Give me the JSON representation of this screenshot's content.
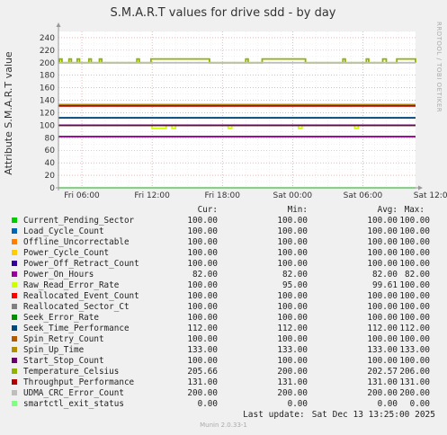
{
  "chart_data": {
    "type": "line",
    "title": "S.M.A.R.T values for drive sdd - by day",
    "ylabel": "Attribute S.M.A.R.T value",
    "side_label": "RRDTOOL / TOBI OETIKER",
    "ylim": [
      0,
      250
    ],
    "yticks": [
      0,
      20,
      40,
      60,
      80,
      100,
      120,
      140,
      160,
      180,
      200,
      220,
      240
    ],
    "xlim": [
      0,
      30.5
    ],
    "xticks": [
      {
        "label": "Fri 06:00",
        "x": 2
      },
      {
        "label": "Fri 12:00",
        "x": 8
      },
      {
        "label": "Fri 18:00",
        "x": 14
      },
      {
        "label": "Sat 00:00",
        "x": 20
      },
      {
        "label": "Sat 06:00",
        "x": 26
      },
      {
        "label": "Sat 12:00",
        "x": 32
      }
    ],
    "grid": true,
    "series": [
      {
        "name": "Current_Pending_Sector",
        "color": "#00cc00",
        "cur": "100.00",
        "min": "100.00",
        "avg": "100.00",
        "max": "100.00",
        "y": 100
      },
      {
        "name": "Load_Cycle_Count",
        "color": "#0066b3",
        "cur": "100.00",
        "min": "100.00",
        "avg": "100.00",
        "max": "100.00",
        "y": 100
      },
      {
        "name": "Offline_Uncorrectable",
        "color": "#ff8000",
        "cur": "100.00",
        "min": "100.00",
        "avg": "100.00",
        "max": "100.00",
        "y": 100
      },
      {
        "name": "Power_Cycle_Count",
        "color": "#ffcc00",
        "cur": "100.00",
        "min": "100.00",
        "avg": "100.00",
        "max": "100.00",
        "y": 100
      },
      {
        "name": "Power_Off_Retract_Count",
        "color": "#330099",
        "cur": "100.00",
        "min": "100.00",
        "avg": "100.00",
        "max": "100.00",
        "y": 100
      },
      {
        "name": "Power_On_Hours",
        "color": "#990099",
        "cur": "82.00",
        "min": "82.00",
        "avg": "82.00",
        "max": "82.00",
        "y": 82
      },
      {
        "name": "Raw_Read_Error_Rate",
        "color": "#ccff00",
        "cur": "100.00",
        "min": "95.00",
        "avg": "99.61",
        "max": "100.00",
        "y": 100
      },
      {
        "name": "Reallocated_Event_Count",
        "color": "#ff0000",
        "cur": "100.00",
        "min": "100.00",
        "avg": "100.00",
        "max": "100.00",
        "y": 100
      },
      {
        "name": "Reallocated_Sector_Ct",
        "color": "#808080",
        "cur": "100.00",
        "min": "100.00",
        "avg": "100.00",
        "max": "100.00",
        "y": 100
      },
      {
        "name": "Seek_Error_Rate",
        "color": "#008f00",
        "cur": "100.00",
        "min": "100.00",
        "avg": "100.00",
        "max": "100.00",
        "y": 100
      },
      {
        "name": "Seek_Time_Performance",
        "color": "#00487d",
        "cur": "112.00",
        "min": "112.00",
        "avg": "112.00",
        "max": "112.00",
        "y": 112
      },
      {
        "name": "Spin_Retry_Count",
        "color": "#b35a00",
        "cur": "100.00",
        "min": "100.00",
        "avg": "100.00",
        "max": "100.00",
        "y": 100
      },
      {
        "name": "Spin_Up_Time",
        "color": "#b38f00",
        "cur": "133.00",
        "min": "133.00",
        "avg": "133.00",
        "max": "133.00",
        "y": 133
      },
      {
        "name": "Start_Stop_Count",
        "color": "#6b006b",
        "cur": "100.00",
        "min": "100.00",
        "avg": "100.00",
        "max": "100.00",
        "y": 100
      },
      {
        "name": "Temperature_Celsius",
        "color": "#8fb300",
        "cur": "205.66",
        "min": "200.00",
        "avg": "202.57",
        "max": "206.00",
        "y": 200
      },
      {
        "name": "Throughput_Performance",
        "color": "#b30000",
        "cur": "131.00",
        "min": "131.00",
        "avg": "131.00",
        "max": "131.00",
        "y": 131
      },
      {
        "name": "UDMA_CRC_Error_Count",
        "color": "#bebebe",
        "cur": "200.00",
        "min": "200.00",
        "avg": "200.00",
        "max": "200.00",
        "y": 200
      },
      {
        "name": "smartctl_exit_status",
        "color": "#80ff80",
        "cur": "0.00",
        "min": "0.00",
        "avg": "0.00",
        "max": "0.00",
        "y": 0
      }
    ],
    "temperature_spikes": [
      [
        0.1,
        0.3
      ],
      [
        0.9,
        1.1
      ],
      [
        1.6,
        1.8
      ],
      [
        2.6,
        2.8
      ],
      [
        3.5,
        3.7
      ],
      [
        6.7,
        6.9
      ],
      [
        7.9,
        12.9
      ],
      [
        16.0,
        16.2
      ],
      [
        17.4,
        21.1
      ],
      [
        24.3,
        24.5
      ],
      [
        26.3,
        26.5
      ],
      [
        27.7,
        28.0
      ],
      [
        28.9,
        30.5
      ]
    ],
    "raw_read_dips": [
      [
        8.0,
        9.2
      ],
      [
        9.7,
        10.0
      ],
      [
        14.5,
        14.8
      ],
      [
        20.5,
        20.8
      ],
      [
        25.3,
        25.6
      ]
    ]
  },
  "legend": {
    "headers": {
      "cur": "Cur:",
      "min": "Min:",
      "avg": "Avg:",
      "max": "Max:"
    }
  },
  "footer": {
    "last_update_label": "Last update:",
    "last_update_value": "Sat Dec 13 13:25:00 2025",
    "munin": "Munin 2.0.33-1"
  }
}
